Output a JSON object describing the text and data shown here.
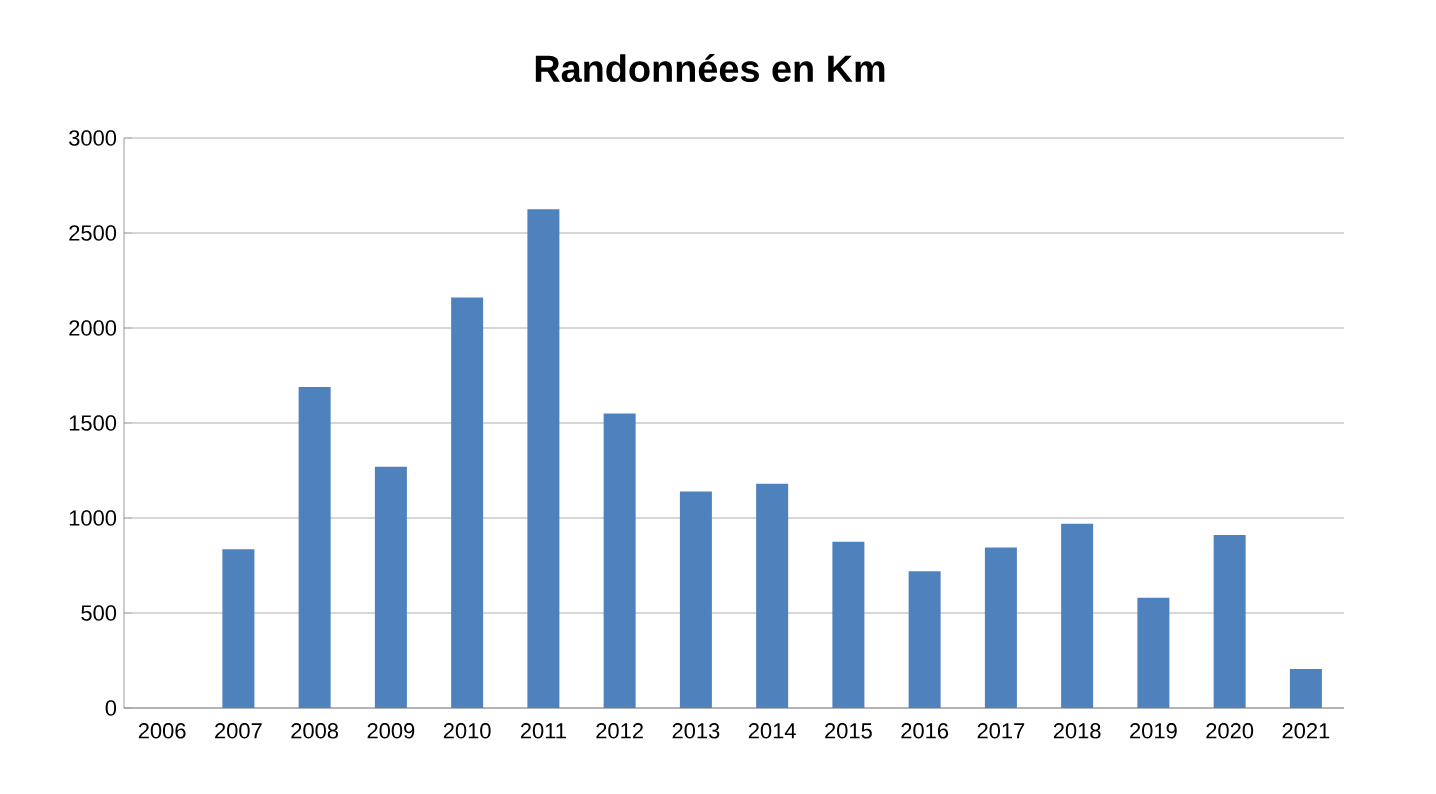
{
  "chart_data": {
    "type": "bar",
    "title": "Randonnées en Km",
    "categories": [
      "2006",
      "2007",
      "2008",
      "2009",
      "2010",
      "2011",
      "2012",
      "2013",
      "2014",
      "2015",
      "2016",
      "2017",
      "2018",
      "2019",
      "2020",
      "2021"
    ],
    "values": [
      null,
      835,
      1690,
      1270,
      2160,
      2625,
      1550,
      1140,
      1180,
      875,
      720,
      845,
      970,
      580,
      910,
      205
    ],
    "color": "#4f81bd",
    "ylim": [
      0,
      3000
    ],
    "yticks": [
      0,
      500,
      1000,
      1500,
      2000,
      2500,
      3000
    ],
    "grid": "y"
  }
}
